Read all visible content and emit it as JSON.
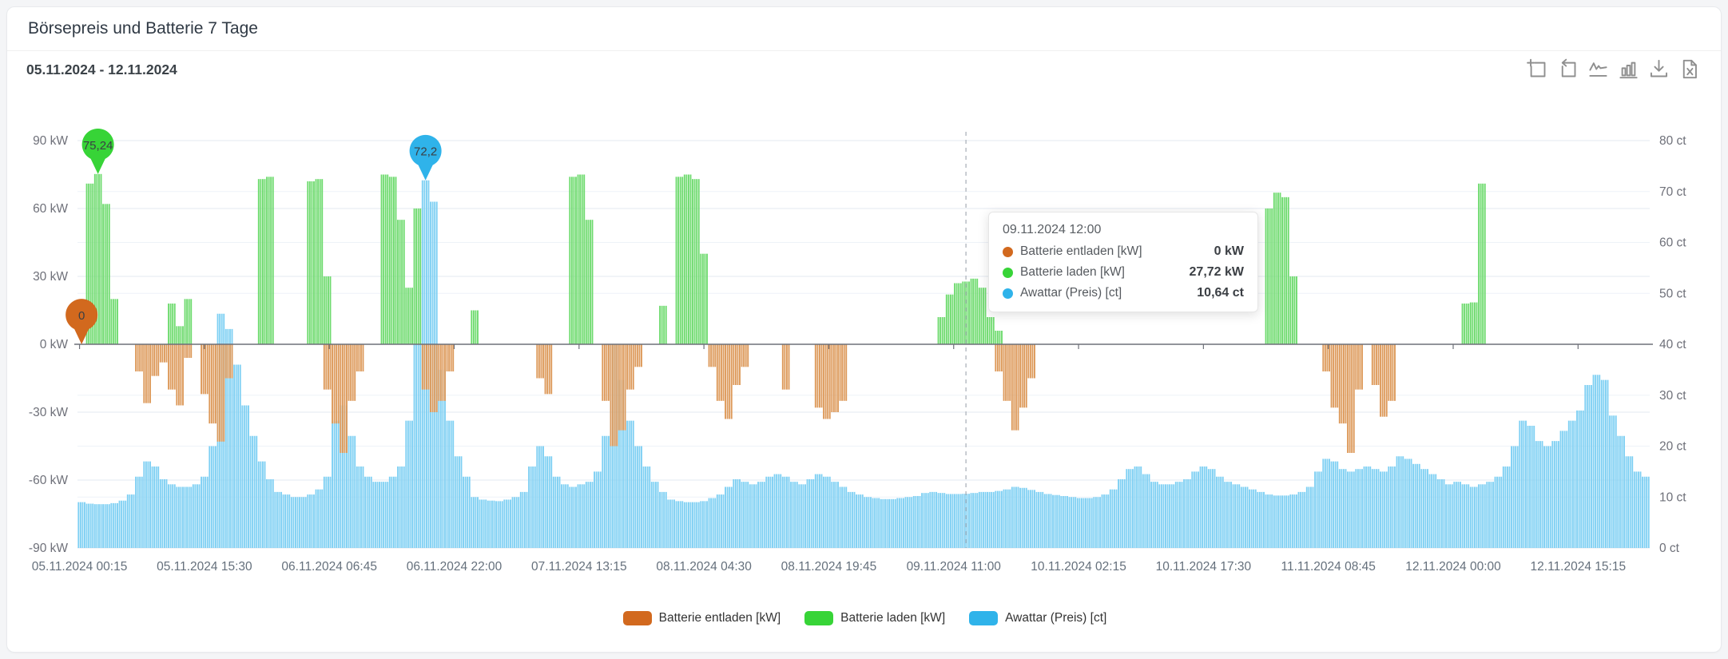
{
  "window": {
    "title": "Börsepreis und Batterie 7 Tage"
  },
  "header": {
    "date_range": "05.11.2024 - 12.11.2024"
  },
  "toolbar": {
    "icons": [
      "zoom-select",
      "zoom-reset",
      "line-chart-view",
      "bar-chart-view",
      "download-image",
      "export-excel"
    ]
  },
  "tooltip": {
    "title": "09.11.2024 12:00",
    "rows": [
      {
        "label": "Batterie entladen [kW]",
        "value": "0 kW"
      },
      {
        "label": "Batterie laden [kW]",
        "value": "27,72 kW"
      },
      {
        "label": "Awattar (Preis) [ct]",
        "value": "10,64 ct"
      }
    ]
  },
  "legend": {
    "items": [
      {
        "label": "Batterie entladen [kW]"
      },
      {
        "label": "Batterie laden [kW]"
      },
      {
        "label": "Awattar (Preis) [ct]"
      }
    ]
  },
  "chart_data": {
    "type": "bar",
    "title": "Börsepreis und Batterie 7 Tage",
    "x_start": "05.11.2024 00:00",
    "interval_hours": 1,
    "points_per_series": 192,
    "x_tick_labels": [
      "05.11.2024 00:15",
      "05.11.2024 15:30",
      "06.11.2024 06:45",
      "06.11.2024 22:00",
      "07.11.2024 13:15",
      "08.11.2024 04:30",
      "08.11.2024 19:45",
      "09.11.2024 11:00",
      "10.11.2024 02:15",
      "10.11.2024 17:30",
      "11.11.2024 08:45",
      "12.11.2024 00:00",
      "12.11.2024 15:15"
    ],
    "x_tick_hours": [
      0.25,
      15.5,
      30.75,
      46,
      61.25,
      76.5,
      91.75,
      107,
      122.25,
      137.5,
      152.75,
      168,
      183.25
    ],
    "left_axis": {
      "unit": "kW",
      "min": -90,
      "max": 90,
      "ticks": [
        90,
        60,
        30,
        0,
        -30,
        -60,
        -90
      ]
    },
    "right_axis": {
      "unit": "ct",
      "min": 0,
      "max": 80,
      "ticks": [
        80,
        70,
        60,
        50,
        40,
        30,
        20,
        10,
        0
      ]
    },
    "grid": true,
    "legend_position": "bottom",
    "hover_line_hour": 108,
    "hover_time": "09.11.2024 12:00",
    "mark_points": [
      {
        "series": "Batterie entladen [kW]",
        "label": "0",
        "hour": 0,
        "value": 0
      },
      {
        "series": "Batterie laden [kW]",
        "label": "75,24",
        "hour": 2,
        "value": 75.24
      },
      {
        "series": "Awattar (Preis) [ct]",
        "label": "72,2",
        "hour": 42,
        "value": 72.2
      }
    ],
    "series": [
      {
        "name": "Batterie entladen [kW]",
        "axis": "left",
        "color": "#d2691e",
        "bar_fill": "#dd9a5b",
        "values": [
          0,
          0,
          0,
          0,
          0,
          0,
          0,
          -12,
          -26,
          -14,
          -8,
          -20,
          -27,
          -6,
          0,
          -22,
          -35,
          -43,
          -15,
          0,
          0,
          0,
          0,
          0,
          0,
          0,
          0,
          0,
          0,
          0,
          -20,
          -35,
          -48,
          -25,
          -12,
          0,
          0,
          0,
          0,
          0,
          0,
          0,
          -20,
          -30,
          -25,
          -12,
          0,
          0,
          0,
          0,
          0,
          0,
          0,
          0,
          0,
          0,
          -15,
          -22,
          0,
          0,
          0,
          0,
          0,
          0,
          -25,
          -45,
          -38,
          -20,
          -10,
          0,
          0,
          0,
          0,
          0,
          0,
          0,
          0,
          -10,
          -25,
          -33,
          -18,
          -10,
          0,
          0,
          0,
          0,
          -20,
          0,
          0,
          0,
          -28,
          -33,
          -30,
          -25,
          0,
          0,
          0,
          0,
          0,
          0,
          0,
          0,
          0,
          0,
          0,
          0,
          0,
          0,
          0,
          0,
          0,
          0,
          -12,
          -25,
          -38,
          -28,
          -15,
          0,
          0,
          0,
          0,
          0,
          0,
          0,
          0,
          0,
          0,
          0,
          0,
          0,
          0,
          0,
          0,
          0,
          0,
          0,
          0,
          0,
          0,
          0,
          0,
          0,
          0,
          0,
          0,
          0,
          0,
          0,
          0,
          0,
          0,
          0,
          -12,
          -28,
          -35,
          -48,
          -20,
          0,
          -18,
          -32,
          -25,
          0,
          0,
          0,
          0,
          0,
          0,
          0,
          0,
          0,
          0,
          0,
          0,
          0,
          0,
          0,
          0,
          0,
          0,
          0,
          0,
          0,
          0,
          0,
          0,
          0,
          0,
          0,
          0,
          0,
          0,
          0
        ]
      },
      {
        "name": "Batterie laden [kW]",
        "axis": "left",
        "color": "#37d437",
        "bar_fill": "#6fdb6f",
        "values": [
          0,
          71,
          75.24,
          62,
          20,
          0,
          0,
          0,
          0,
          0,
          0,
          18,
          8,
          20,
          0,
          0,
          0,
          0,
          0,
          0,
          0,
          0,
          73,
          74,
          0,
          0,
          0,
          0,
          72,
          73,
          30,
          0,
          0,
          0,
          0,
          0,
          0,
          75,
          74,
          55,
          25,
          60,
          0,
          0,
          0,
          0,
          0,
          0,
          15,
          0,
          0,
          0,
          0,
          0,
          0,
          0,
          0,
          0,
          0,
          0,
          74,
          75,
          55,
          0,
          0,
          0,
          0,
          0,
          0,
          0,
          0,
          17,
          0,
          74,
          75,
          73,
          40,
          0,
          0,
          0,
          0,
          0,
          0,
          0,
          0,
          0,
          0,
          0,
          0,
          0,
          0,
          0,
          0,
          0,
          0,
          0,
          0,
          0,
          0,
          0,
          0,
          0,
          0,
          0,
          0,
          12,
          22,
          27,
          27.72,
          29,
          25,
          12,
          6,
          0,
          0,
          0,
          0,
          0,
          0,
          0,
          0,
          0,
          0,
          0,
          0,
          0,
          0,
          0,
          0,
          0,
          0,
          0,
          0,
          0,
          0,
          0,
          0,
          0,
          0,
          0,
          0,
          0,
          0,
          0,
          0,
          60,
          67,
          65,
          30,
          0,
          0,
          0,
          0,
          0,
          0,
          0,
          0,
          0,
          0,
          0,
          0,
          0,
          0,
          0,
          0,
          0,
          0,
          0,
          0,
          18,
          18.5,
          71,
          0,
          0,
          0,
          0,
          0,
          0,
          0,
          0,
          0,
          0,
          0,
          0,
          0,
          0,
          0,
          0,
          0,
          0,
          0,
          0
        ]
      },
      {
        "name": "Awattar (Preis) [ct]",
        "axis": "right",
        "color": "#2fb3ea",
        "bar_fill": "#7fd0f3",
        "values": [
          9,
          8.7,
          8.6,
          8.6,
          8.8,
          9.3,
          10.5,
          14,
          17,
          16,
          13.5,
          12.5,
          12,
          12,
          12.5,
          14,
          20,
          46,
          43,
          36,
          28,
          22,
          17,
          13.5,
          11,
          10.5,
          10,
          10,
          10.5,
          11.5,
          14,
          25,
          28,
          22,
          16,
          14,
          13,
          13,
          14,
          16,
          25,
          40,
          72.2,
          68,
          35,
          25,
          18,
          14,
          10,
          9.5,
          9.3,
          9.2,
          9.5,
          10,
          11,
          16,
          20,
          18,
          14,
          12.5,
          12,
          12.5,
          13,
          15,
          22,
          40,
          33,
          25,
          20,
          16,
          13,
          11,
          9.5,
          9.2,
          9,
          9,
          9.2,
          9.8,
          10.5,
          12,
          13.5,
          13,
          12.5,
          13,
          14,
          14.5,
          14,
          13,
          12.5,
          13.5,
          14.5,
          14,
          13,
          12,
          11,
          10.5,
          10,
          9.8,
          9.6,
          9.6,
          9.8,
          10,
          10.2,
          10.8,
          11,
          10.8,
          10.6,
          10.6,
          10.64,
          10.8,
          11,
          11,
          11.2,
          11.5,
          12,
          11.8,
          11.4,
          11,
          10.6,
          10.4,
          10.2,
          10,
          9.8,
          9.8,
          10,
          10.5,
          11.5,
          13.5,
          15.5,
          16,
          14.5,
          13,
          12.5,
          12.5,
          13,
          13.5,
          15,
          16,
          15.5,
          14,
          13,
          12.5,
          12,
          11.5,
          11,
          10.5,
          10.3,
          10.3,
          10.5,
          11,
          12,
          15,
          17.5,
          17,
          15.5,
          15,
          15.5,
          16,
          15.5,
          15,
          16,
          18,
          17.5,
          16.5,
          15.5,
          14.5,
          13.5,
          12.5,
          13,
          12.5,
          12,
          12.5,
          13,
          14,
          16,
          20,
          25,
          24,
          21,
          20,
          21,
          23,
          25,
          27,
          32,
          34,
          33,
          26,
          22,
          18,
          15,
          14
        ]
      }
    ]
  }
}
